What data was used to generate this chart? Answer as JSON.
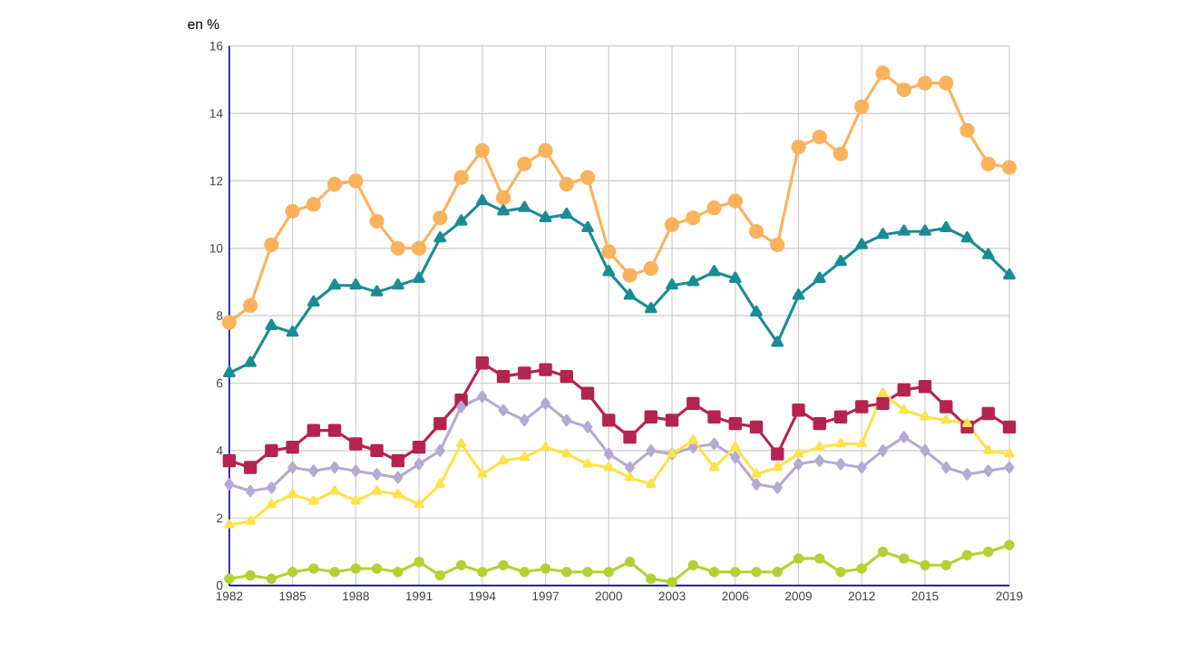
{
  "chart_data": {
    "type": "line",
    "ylabel": "en %",
    "x": [
      1982,
      1983,
      1984,
      1985,
      1986,
      1987,
      1988,
      1989,
      1990,
      1991,
      1992,
      1993,
      1994,
      1995,
      1996,
      1997,
      1998,
      1999,
      2000,
      2001,
      2002,
      2003,
      2004,
      2005,
      2006,
      2007,
      2008,
      2009,
      2010,
      2011,
      2012,
      2013,
      2014,
      2015,
      2016,
      2017,
      2018,
      2019
    ],
    "xlim": [
      1982,
      2019
    ],
    "xticks": [
      1982,
      1985,
      1988,
      1991,
      1994,
      1997,
      2000,
      2003,
      2006,
      2009,
      2012,
      2015,
      2019
    ],
    "ylim": [
      0,
      16
    ],
    "yticks": [
      0,
      2,
      4,
      6,
      8,
      10,
      12,
      14,
      16
    ],
    "grid": true,
    "line_style": "solid",
    "series": [
      {
        "color": "#fbb25c",
        "marker": "circle",
        "values": [
          7.8,
          8.3,
          10.1,
          11.1,
          11.3,
          11.9,
          12.0,
          10.8,
          10.0,
          10.0,
          10.9,
          12.1,
          12.9,
          11.5,
          12.5,
          12.9,
          11.9,
          12.1,
          9.9,
          9.2,
          9.4,
          10.7,
          10.9,
          11.2,
          11.4,
          10.5,
          10.1,
          13.0,
          13.3,
          12.8,
          14.2,
          15.2,
          14.7,
          14.9,
          14.9,
          13.5,
          12.5,
          12.4
        ]
      },
      {
        "color": "#1a8c94",
        "marker": "triangle",
        "values": [
          6.3,
          6.6,
          7.7,
          7.5,
          8.4,
          8.9,
          8.9,
          8.7,
          8.9,
          9.1,
          10.3,
          10.8,
          11.4,
          11.1,
          11.2,
          10.9,
          11.0,
          10.6,
          9.3,
          8.6,
          8.2,
          8.9,
          9.0,
          9.3,
          9.1,
          8.1,
          7.2,
          8.6,
          9.1,
          9.6,
          10.1,
          10.4,
          10.5,
          10.5,
          10.6,
          10.3,
          9.8,
          9.2
        ]
      },
      {
        "color": "#b5234f",
        "marker": "square",
        "values": [
          3.7,
          3.5,
          4.0,
          4.1,
          4.6,
          4.6,
          4.2,
          4.0,
          3.7,
          4.1,
          4.8,
          5.5,
          6.6,
          6.2,
          6.3,
          6.4,
          6.2,
          5.7,
          4.9,
          4.4,
          5.0,
          4.9,
          5.4,
          5.0,
          4.8,
          4.7,
          3.9,
          5.2,
          4.8,
          5.0,
          5.3,
          5.4,
          5.8,
          5.9,
          5.3,
          4.7,
          5.1,
          4.7
        ]
      },
      {
        "color": "#b6a9d2",
        "marker": "diamond",
        "values": [
          3.0,
          2.8,
          2.9,
          3.5,
          3.4,
          3.5,
          3.4,
          3.3,
          3.2,
          3.6,
          4.0,
          5.3,
          5.6,
          5.2,
          4.9,
          5.4,
          4.9,
          4.7,
          3.9,
          3.5,
          4.0,
          3.9,
          4.1,
          4.2,
          3.8,
          3.0,
          2.9,
          3.6,
          3.7,
          3.6,
          3.5,
          4.0,
          4.4,
          4.0,
          3.5,
          3.3,
          3.4,
          3.5
        ]
      },
      {
        "color": "#fde24a",
        "marker": "triangle",
        "values": [
          1.8,
          1.9,
          2.4,
          2.7,
          2.5,
          2.8,
          2.5,
          2.8,
          2.7,
          2.4,
          3.0,
          4.2,
          3.3,
          3.7,
          3.8,
          4.1,
          3.9,
          3.6,
          3.5,
          3.2,
          3.0,
          3.9,
          4.3,
          3.5,
          4.1,
          3.3,
          3.5,
          3.9,
          4.1,
          4.2,
          4.2,
          5.7,
          5.2,
          5.0,
          4.9,
          4.8,
          4.0,
          3.9
        ]
      },
      {
        "color": "#b3d232",
        "marker": "circle",
        "values": [
          0.2,
          0.3,
          0.2,
          0.4,
          0.5,
          0.4,
          0.5,
          0.5,
          0.4,
          0.7,
          0.3,
          0.6,
          0.4,
          0.6,
          0.4,
          0.5,
          0.4,
          0.4,
          0.4,
          0.7,
          0.2,
          0.1,
          0.6,
          0.4,
          0.4,
          0.4,
          0.4,
          0.8,
          0.8,
          0.4,
          0.5,
          1.0,
          0.8,
          0.6,
          0.6,
          0.9,
          1.0,
          1.2
        ]
      }
    ]
  }
}
